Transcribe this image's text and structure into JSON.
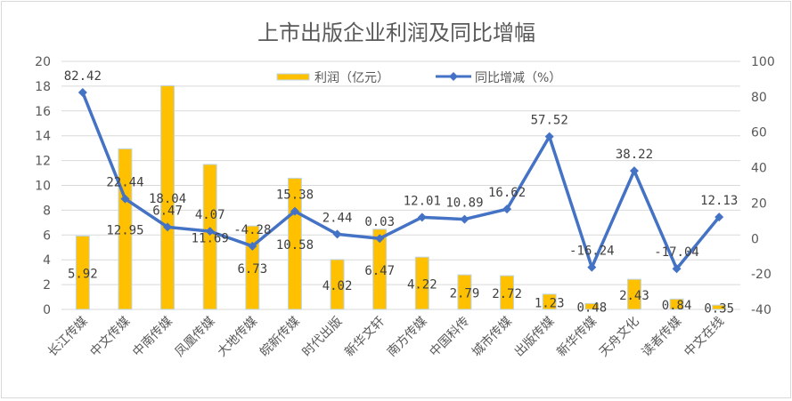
{
  "chart_data": {
    "type": "bar+line",
    "title": "上市出版企业利润及同比增幅",
    "categories": [
      "长江传媒",
      "中文传媒",
      "中南传媒",
      "凤凰传媒",
      "大地传媒",
      "皖新传媒",
      "时代出版",
      "新华文轩",
      "南方传媒",
      "中国科传",
      "城市传媒",
      "出版传媒",
      "新华传媒",
      "天舟文化",
      "读者传媒",
      "中文在线"
    ],
    "series": [
      {
        "name": "利润（亿元）",
        "type": "bar",
        "axis": "left",
        "color": "#FFC000",
        "values": [
          5.92,
          12.95,
          18.04,
          11.69,
          6.73,
          10.58,
          4.02,
          6.47,
          4.22,
          2.79,
          2.72,
          1.23,
          0.48,
          2.43,
          0.84,
          0.35
        ]
      },
      {
        "name": "同比增减（%）",
        "type": "line",
        "axis": "right",
        "color": "#4472C4",
        "values": [
          82.42,
          22.44,
          6.47,
          4.07,
          -4.28,
          15.38,
          2.44,
          0.03,
          12.01,
          10.89,
          16.62,
          57.52,
          -16.24,
          38.22,
          -17.04,
          12.13
        ]
      }
    ],
    "left_axis": {
      "min": 0,
      "max": 20,
      "step": 2,
      "ticks": [
        "0",
        "2",
        "4",
        "6",
        "8",
        "10",
        "12",
        "14",
        "16",
        "18",
        "20"
      ]
    },
    "right_axis": {
      "min": -40,
      "max": 100,
      "step": 20,
      "ticks": [
        "-40",
        "-20",
        "0",
        "20",
        "40",
        "60",
        "80",
        "100"
      ]
    },
    "grid": true,
    "legend_position": "top"
  },
  "legend": {
    "bar_label": "利润（亿元）",
    "line_label": "同比增减（%）"
  }
}
